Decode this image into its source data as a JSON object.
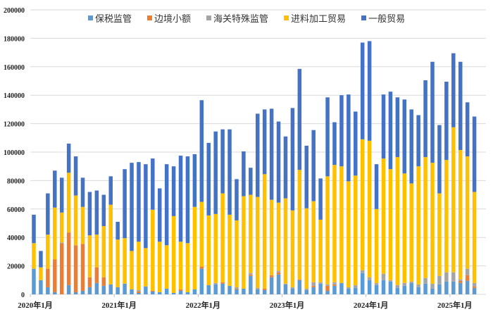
{
  "chart_data": {
    "type": "bar",
    "stacked": true,
    "title": "",
    "xlabel": "",
    "ylabel": "",
    "ylim": [
      0,
      200000
    ],
    "yticks": [
      0,
      20000,
      40000,
      60000,
      80000,
      100000,
      120000,
      140000,
      160000,
      180000,
      200000
    ],
    "xtick_labels": [
      "2020年1月",
      "2021年1月",
      "2022年1月",
      "2023年1月",
      "2024年1月",
      "2025年1月"
    ],
    "grid": true,
    "legend_position": "top",
    "categories": [
      "2020-01",
      "2020-02",
      "2020-03",
      "2020-04",
      "2020-05",
      "2020-06",
      "2020-07",
      "2020-08",
      "2020-09",
      "2020-10",
      "2020-11",
      "2020-12",
      "2021-01",
      "2021-02",
      "2021-03",
      "2021-04",
      "2021-05",
      "2021-06",
      "2021-07",
      "2021-08",
      "2021-09",
      "2021-10",
      "2021-11",
      "2021-12",
      "2022-01",
      "2022-02",
      "2022-03",
      "2022-04",
      "2022-05",
      "2022-06",
      "2022-07",
      "2022-08",
      "2022-09",
      "2022-10",
      "2022-11",
      "2022-12",
      "2023-01",
      "2023-02",
      "2023-03",
      "2023-04",
      "2023-05",
      "2023-06",
      "2023-07",
      "2023-08",
      "2023-09",
      "2023-10",
      "2023-11",
      "2023-12",
      "2024-01",
      "2024-02",
      "2024-03",
      "2024-04",
      "2024-05",
      "2024-06",
      "2024-07",
      "2024-08",
      "2024-09",
      "2024-10",
      "2024-11",
      "2024-12",
      "2025-01",
      "2025-02",
      "2025-03",
      "2025-04"
    ],
    "series": [
      {
        "name": "保税监管",
        "color": "#5B9BD5",
        "values": [
          18000,
          10000,
          5000,
          1500,
          0,
          6500,
          1500,
          2500,
          5000,
          8000,
          6000,
          7000,
          5000,
          7500,
          3500,
          1000,
          5500,
          2000,
          1500,
          4000,
          1000,
          2500,
          1500,
          3500,
          18000,
          6500,
          7000,
          7500,
          6000,
          3500,
          4000,
          13000,
          3500,
          3000,
          12000,
          14000,
          7000,
          4000,
          10000,
          3000,
          5000,
          7500,
          2500,
          6000,
          8000,
          4000,
          4500,
          15000,
          10000,
          6500,
          10000,
          9000,
          4500,
          6000,
          8000,
          5000,
          7500,
          4000,
          7000,
          9000,
          9000,
          8000,
          9500,
          4500
        ]
      },
      {
        "name": "边境小额",
        "color": "#ED7D31",
        "values": [
          0,
          0,
          13000,
          23000,
          36000,
          37000,
          33000,
          33000,
          7000,
          11000,
          6000,
          0,
          0,
          0,
          0,
          1000,
          0,
          500,
          0,
          0,
          0,
          1000,
          0,
          0,
          1500,
          0,
          0,
          1000,
          0,
          500,
          0,
          1000,
          0,
          1000,
          1500,
          1500,
          0,
          0,
          500,
          0,
          1000,
          0,
          3500,
          1000,
          0,
          0,
          0,
          0,
          0,
          0,
          0,
          0,
          0,
          0,
          0,
          0,
          0,
          0,
          0,
          0,
          0,
          1500,
          4000,
          1000
        ]
      },
      {
        "name": "海关特殊监管",
        "color": "#A5A5A5",
        "values": [
          0,
          0,
          0,
          0,
          500,
          0,
          0,
          0,
          0,
          0,
          0,
          0,
          0,
          0,
          0,
          1000,
          0,
          0,
          0,
          0,
          0,
          0,
          0,
          0,
          0,
          0,
          1000,
          0,
          0,
          1000,
          0,
          1000,
          1000,
          0,
          0,
          1000,
          500,
          1000,
          0,
          1000,
          2500,
          1000,
          1000,
          1500,
          0,
          1000,
          2000,
          2000,
          2000,
          1500,
          4500,
          1000,
          2000,
          2000,
          1000,
          2000,
          4000,
          3500,
          6000,
          6500,
          6500,
          1000,
          4500,
          2500
        ]
      },
      {
        "name": "进料加工贸易",
        "color": "#FFC000",
        "values": [
          18000,
          9000,
          24000,
          36500,
          21000,
          42000,
          35000,
          26000,
          29500,
          23000,
          36000,
          56000,
          33500,
          32000,
          27000,
          34000,
          27000,
          57000,
          35500,
          30500,
          54000,
          33500,
          34500,
          58000,
          45500,
          49000,
          48500,
          62500,
          50000,
          47000,
          65000,
          55000,
          64000,
          80500,
          53000,
          48000,
          60000,
          54000,
          77000,
          56500,
          57000,
          44000,
          76000,
          82500,
          82000,
          74500,
          77000,
          92000,
          96000,
          52000,
          81000,
          78000,
          90000,
          77000,
          69000,
          83000,
          85000,
          85000,
          58000,
          79000,
          102000,
          91000,
          79000,
          64000
        ]
      },
      {
        "name": "一般贸易",
        "color": "#4472C4",
        "values": [
          20000,
          11500,
          29000,
          26000,
          24500,
          20500,
          27500,
          20500,
          30500,
          31000,
          22000,
          20000,
          12500,
          48500,
          62000,
          56000,
          59000,
          36000,
          37500,
          57000,
          35000,
          60500,
          61000,
          37000,
          71500,
          51000,
          58000,
          45000,
          60000,
          29000,
          31500,
          19000,
          58500,
          45500,
          64000,
          57000,
          43500,
          72000,
          71000,
          44000,
          50000,
          29000,
          55500,
          30000,
          50000,
          61000,
          45000,
          68000,
          70000,
          31500,
          45000,
          54500,
          42000,
          52000,
          52000,
          36000,
          54000,
          71000,
          48000,
          55000,
          52000,
          62000,
          38000,
          53000
        ]
      }
    ]
  },
  "legend": {
    "items": [
      {
        "label": "保税监管",
        "color": "#5B9BD5"
      },
      {
        "label": "边境小额",
        "color": "#ED7D31"
      },
      {
        "label": "海关特殊监管",
        "color": "#A5A5A5"
      },
      {
        "label": "进料加工贸易",
        "color": "#FFC000"
      },
      {
        "label": "一般贸易",
        "color": "#4472C4"
      }
    ]
  },
  "axis": {
    "y_labels": [
      "0",
      "20000",
      "40000",
      "60000",
      "80000",
      "100000",
      "120000",
      "140000",
      "160000",
      "180000",
      "200000"
    ],
    "x_labels": [
      "2020年1月",
      "2021年1月",
      "2022年1月",
      "2023年1月",
      "2024年1月",
      "2025年1月"
    ]
  }
}
